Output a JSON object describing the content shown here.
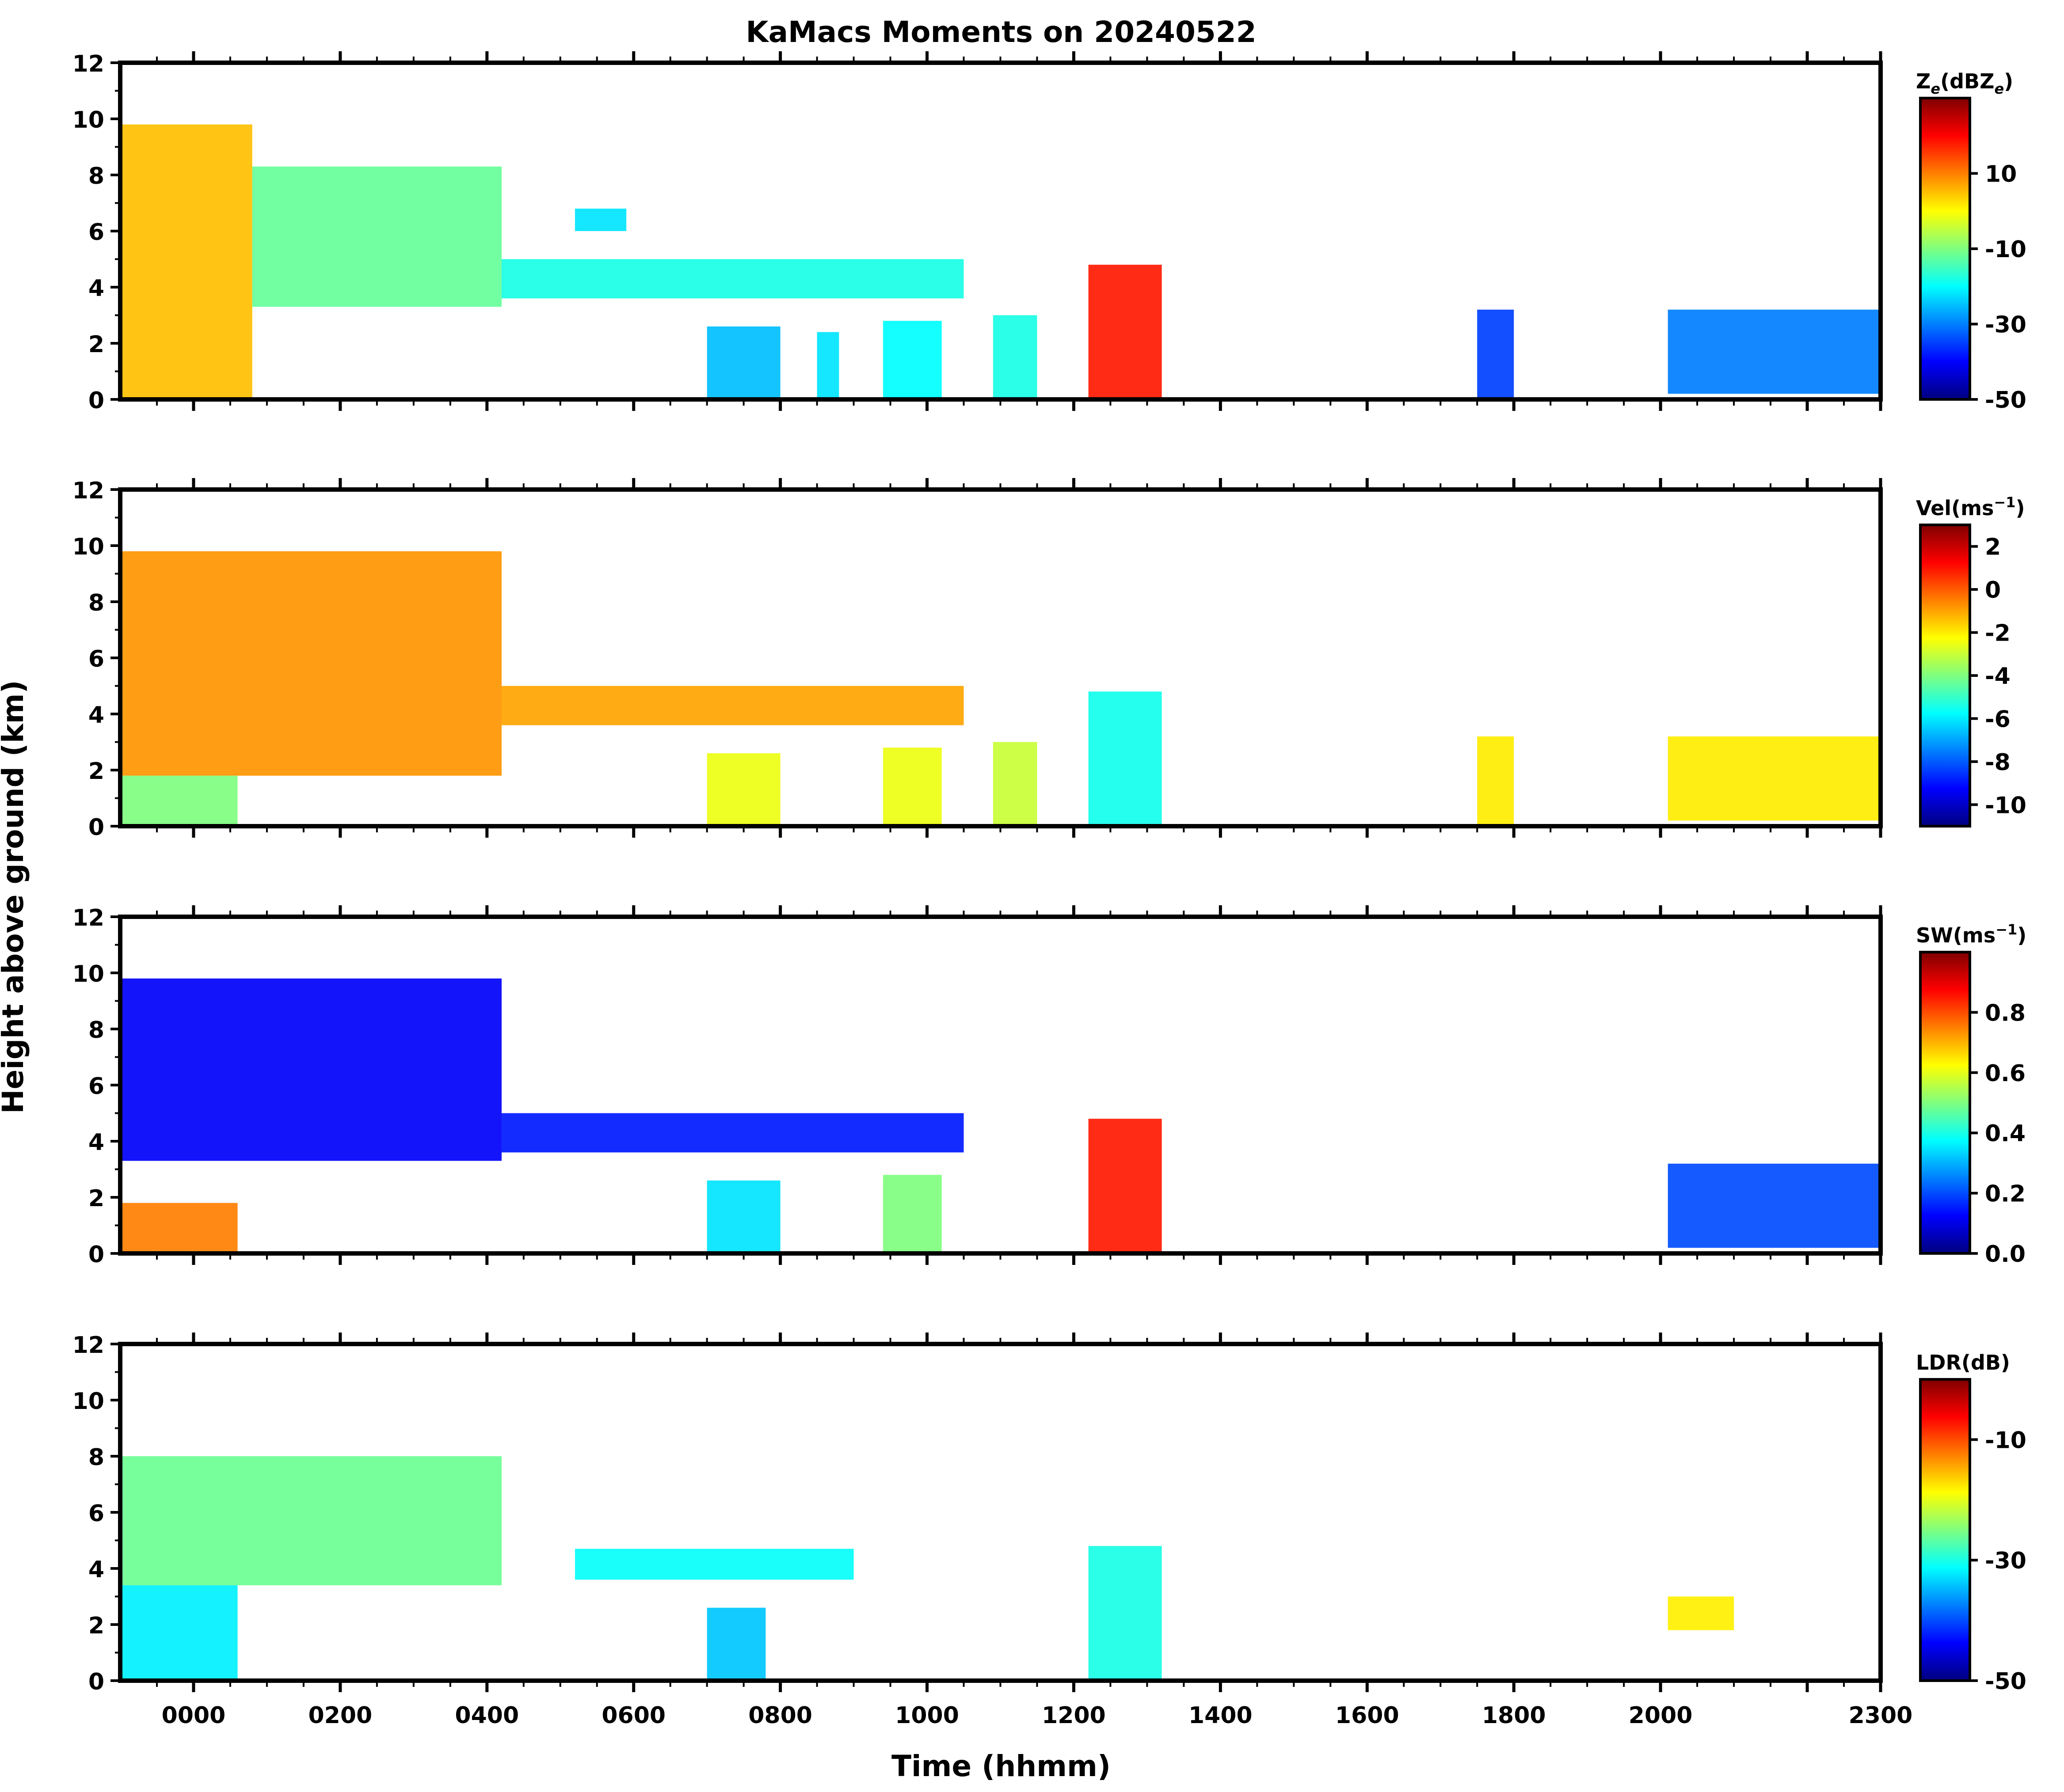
{
  "chart_data": {
    "type": "heatmap",
    "title": "KaMacs Moments on 20240522",
    "xlabel": "Time (hhmm)",
    "ylabel": "Height above ground (km)",
    "xlim": [
      -100,
      2300
    ],
    "x_ticks": [
      0,
      200,
      400,
      600,
      800,
      1000,
      1200,
      1400,
      1600,
      1800,
      2000,
      2300
    ],
    "x_tick_labels": [
      "0000",
      "0200",
      "0400",
      "0600",
      "0800",
      "1000",
      "1200",
      "1400",
      "1600",
      "1800",
      "2000",
      "2300"
    ],
    "ylim": [
      0,
      12
    ],
    "y_ticks": [
      0,
      2,
      4,
      6,
      8,
      10,
      12
    ],
    "y_tick_labels": [
      "0",
      "2",
      "4",
      "6",
      "8",
      "10",
      "12"
    ],
    "colormap": [
      "#00007f",
      "#0000ff",
      "#007fff",
      "#00ffff",
      "#7fff7f",
      "#ffff00",
      "#ff7f00",
      "#ff0000",
      "#7f0000"
    ],
    "panels": [
      {
        "id": "ze",
        "colorbar_label": "Ze(dBZe)",
        "colorbar_label_main": "Z",
        "colorbar_label_sub": "e",
        "colorbar_label_rest": "(dBZ",
        "colorbar_label_sub2": "e",
        "colorbar_label_close": ")",
        "vmin": -50,
        "vmax": 30,
        "colorbar_ticks": [
          -50,
          -30,
          -10,
          10
        ],
        "colorbar_tick_labels": [
          "-50",
          "-30",
          "-10",
          "10"
        ],
        "regions": [
          {
            "t0": -100,
            "t1": 80,
            "h0": 0,
            "h1": 9.8,
            "value": 5
          },
          {
            "t0": 80,
            "t1": 420,
            "h0": 3.3,
            "h1": 8.3,
            "value": -12
          },
          {
            "t0": 420,
            "t1": 1050,
            "h0": 3.6,
            "h1": 5.0,
            "value": -18
          },
          {
            "t0": 520,
            "t1": 590,
            "h0": 6.0,
            "h1": 6.8,
            "value": -22
          },
          {
            "t0": 700,
            "t1": 800,
            "h0": 0,
            "h1": 2.6,
            "value": -25
          },
          {
            "t0": 850,
            "t1": 880,
            "h0": 0,
            "h1": 2.4,
            "value": -22
          },
          {
            "t0": 940,
            "t1": 1020,
            "h0": 0,
            "h1": 2.8,
            "value": -20
          },
          {
            "t0": 1090,
            "t1": 1150,
            "h0": 0,
            "h1": 3.0,
            "value": -18
          },
          {
            "t0": 1220,
            "t1": 1320,
            "h0": 0,
            "h1": 4.8,
            "value": 18
          },
          {
            "t0": 1750,
            "t1": 1800,
            "h0": 0,
            "h1": 3.2,
            "value": -35
          },
          {
            "t0": 2010,
            "t1": 2300,
            "h0": 0.2,
            "h1": 3.2,
            "value": -30
          }
        ]
      },
      {
        "id": "vel",
        "colorbar_label": "Vel(ms-1)",
        "colorbar_label_main": "Vel(ms",
        "colorbar_label_sup": "−1",
        "colorbar_label_close": ")",
        "vmin": -11,
        "vmax": 3,
        "colorbar_ticks": [
          -10,
          -8,
          -6,
          -4,
          -2,
          0,
          2
        ],
        "colorbar_tick_labels": [
          "-10",
          "-8",
          "-6",
          "-4",
          "-2",
          "0",
          "2"
        ],
        "regions": [
          {
            "t0": -100,
            "t1": 420,
            "h0": 1.8,
            "h1": 9.8,
            "value": -0.8
          },
          {
            "t0": -100,
            "t1": 60,
            "h0": 0,
            "h1": 1.8,
            "value": -4
          },
          {
            "t0": 420,
            "t1": 1050,
            "h0": 3.6,
            "h1": 5.0,
            "value": -1
          },
          {
            "t0": 700,
            "t1": 800,
            "h0": 0,
            "h1": 2.6,
            "value": -2.5
          },
          {
            "t0": 940,
            "t1": 1020,
            "h0": 0,
            "h1": 2.8,
            "value": -2.5
          },
          {
            "t0": 1090,
            "t1": 1150,
            "h0": 0,
            "h1": 3.0,
            "value": -3
          },
          {
            "t0": 1220,
            "t1": 1320,
            "h0": 0,
            "h1": 4.8,
            "value": -5.5
          },
          {
            "t0": 1750,
            "t1": 1800,
            "h0": 0,
            "h1": 3.2,
            "value": -2
          },
          {
            "t0": 2010,
            "t1": 2300,
            "h0": 0.2,
            "h1": 3.2,
            "value": -2
          }
        ]
      },
      {
        "id": "sw",
        "colorbar_label": "SW(ms-1)",
        "colorbar_label_main": "SW(ms",
        "colorbar_label_sup": "−1",
        "colorbar_label_close": ")",
        "vmin": 0.0,
        "vmax": 1.0,
        "colorbar_ticks": [
          0.0,
          0.2,
          0.4,
          0.6,
          0.8
        ],
        "colorbar_tick_labels": [
          "0.0",
          "0.2",
          "0.4",
          "0.6",
          "0.8"
        ],
        "regions": [
          {
            "t0": -100,
            "t1": 420,
            "h0": 3.3,
            "h1": 9.8,
            "value": 0.12
          },
          {
            "t0": -100,
            "t1": 60,
            "h0": 0,
            "h1": 1.8,
            "value": 0.75
          },
          {
            "t0": 420,
            "t1": 1050,
            "h0": 3.6,
            "h1": 5.0,
            "value": 0.15
          },
          {
            "t0": 700,
            "t1": 800,
            "h0": 0,
            "h1": 2.6,
            "value": 0.35
          },
          {
            "t0": 940,
            "t1": 1020,
            "h0": 0,
            "h1": 2.8,
            "value": 0.5
          },
          {
            "t0": 1220,
            "t1": 1320,
            "h0": 0,
            "h1": 4.8,
            "value": 0.85
          },
          {
            "t0": 2010,
            "t1": 2300,
            "h0": 0.2,
            "h1": 3.2,
            "value": 0.2
          }
        ]
      },
      {
        "id": "ldr",
        "colorbar_label": "LDR(dB)",
        "colorbar_label_main": "LDR(dB)",
        "vmin": -50,
        "vmax": 0,
        "colorbar_ticks": [
          -50,
          -30,
          -10
        ],
        "colorbar_tick_labels": [
          "-50",
          "-30",
          "-10"
        ],
        "regions": [
          {
            "t0": -100,
            "t1": 420,
            "h0": 3.4,
            "h1": 8.0,
            "value": -26
          },
          {
            "t0": -100,
            "t1": 60,
            "h0": 0,
            "h1": 3.4,
            "value": -32
          },
          {
            "t0": 520,
            "t1": 900,
            "h0": 3.6,
            "h1": 4.7,
            "value": -31
          },
          {
            "t0": 700,
            "t1": 780,
            "h0": 0,
            "h1": 2.6,
            "value": -34
          },
          {
            "t0": 1220,
            "t1": 1320,
            "h0": 0,
            "h1": 4.8,
            "value": -30
          },
          {
            "t0": 2010,
            "t1": 2100,
            "h0": 1.8,
            "h1": 3.0,
            "value": -18
          }
        ]
      }
    ]
  }
}
